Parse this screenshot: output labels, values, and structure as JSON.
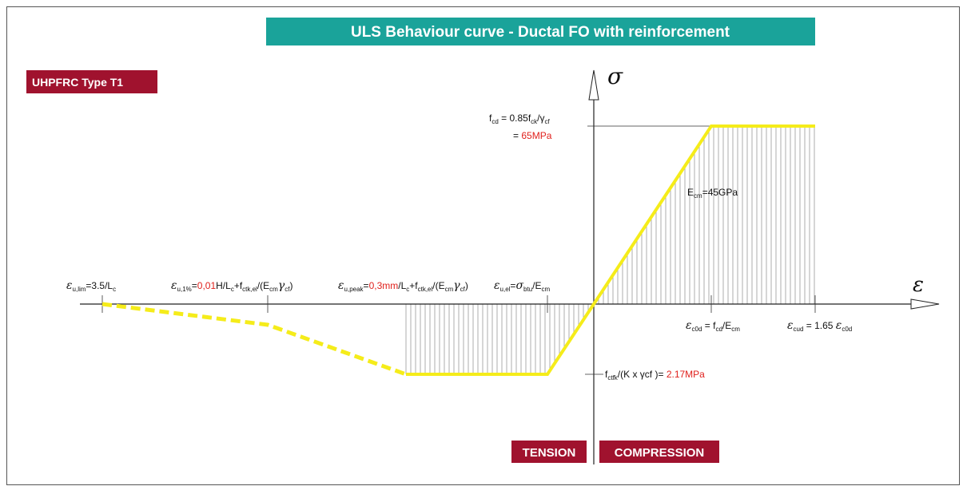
{
  "title": "ULS Behaviour curve - Ductal FO with reinforcement",
  "badge": "UHPFRC Type T1",
  "axes": {
    "sigma": "σ",
    "epsilon": "ε"
  },
  "labels": {
    "fcd": [
      "f",
      "cd",
      " = 0.85f",
      "ck",
      "/γ",
      "cf"
    ],
    "fcd_value": [
      "= ",
      "65MPa"
    ],
    "ecm": [
      "E",
      "cm",
      "=45GPa"
    ],
    "eu_lim": [
      "ε",
      "u,lim",
      "=3.5/L",
      "c"
    ],
    "eu_1": [
      "ε",
      "u,1%",
      "=",
      "0,01",
      "H/L",
      "c",
      "+f",
      "ctk,el",
      "/(E",
      "cm",
      "γ",
      "cf",
      ")"
    ],
    "eu_peak": [
      "ε",
      "u,peak",
      "=",
      "0,3mm",
      "/L",
      "c",
      "+f",
      "ctk,el",
      "/(E",
      "cm",
      "γ",
      "cf",
      ")"
    ],
    "eu_el": [
      "ε",
      "u,el",
      "=",
      "σ",
      "btu",
      "/E",
      "cm"
    ],
    "ec0d": [
      "ε",
      "c0d",
      " = f",
      "cd",
      "/E",
      "cm"
    ],
    "ecud": [
      "ε",
      "cud",
      " = 1.65 ",
      "ε",
      "c0d"
    ],
    "fctfk": [
      "f",
      "ctfk",
      "/(K x γcf )= ",
      "2.17MPa"
    ]
  },
  "tension": "TENSION",
  "compression": "COMPRESSION"
}
